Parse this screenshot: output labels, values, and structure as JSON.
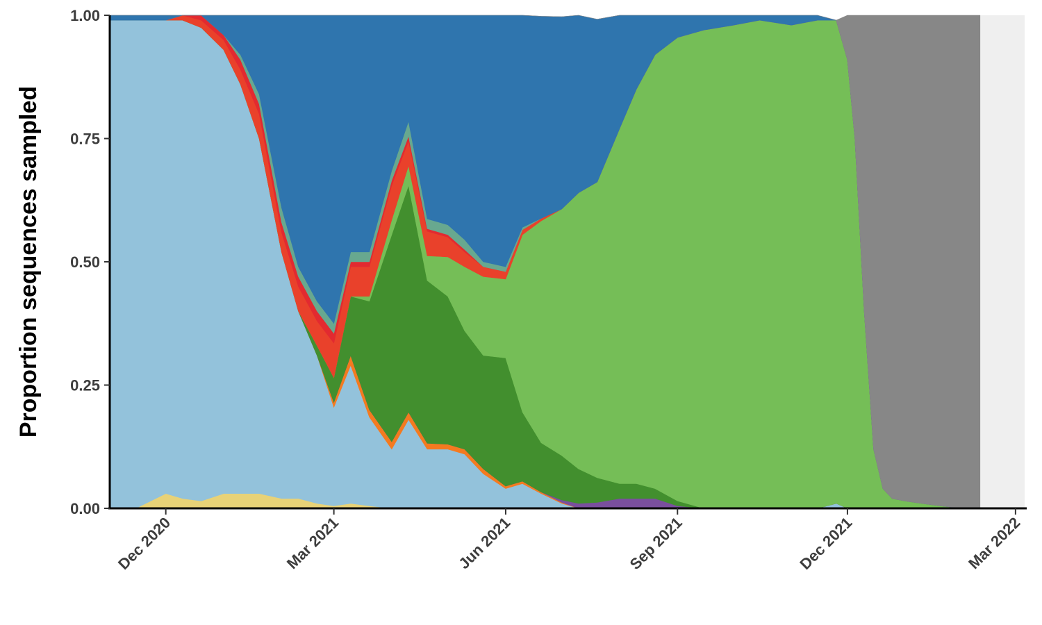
{
  "chart_data": {
    "type": "area",
    "title": "",
    "xlabel": "",
    "ylabel": "Proportion sequences sampled",
    "x_range": [
      "2020-11-01",
      "2022-03-07"
    ],
    "ylim": [
      0,
      1
    ],
    "x_ticks": [
      {
        "date": "2020-12-01",
        "label": "Dec 2020"
      },
      {
        "date": "2021-03-01",
        "label": "Mar 2021"
      },
      {
        "date": "2021-06-01",
        "label": "Jun 2021"
      },
      {
        "date": "2021-09-01",
        "label": "Sep 2021"
      },
      {
        "date": "2021-12-01",
        "label": "Dec 2021"
      },
      {
        "date": "2022-03-01",
        "label": "Mar 2022"
      }
    ],
    "y_ticks": [
      "0.00",
      "0.25",
      "0.50",
      "0.75",
      "1.00"
    ],
    "y_tick_values": [
      0,
      0.25,
      0.5,
      0.75,
      1.0
    ],
    "data_end": "2022-02-10",
    "no_data_color": "#efefef",
    "grid": false,
    "legend": "none",
    "dates": [
      "2020-11-01",
      "2020-11-15",
      "2020-12-01",
      "2020-12-10",
      "2020-12-20",
      "2021-01-01",
      "2021-01-10",
      "2021-01-20",
      "2021-02-01",
      "2021-02-10",
      "2021-02-20",
      "2021-03-01",
      "2021-03-10",
      "2021-03-20",
      "2021-04-01",
      "2021-04-10",
      "2021-04-20",
      "2021-05-01",
      "2021-05-10",
      "2021-05-20",
      "2021-06-01",
      "2021-06-10",
      "2021-06-20",
      "2021-07-01",
      "2021-07-10",
      "2021-07-20",
      "2021-08-01",
      "2021-08-10",
      "2021-08-20",
      "2021-09-01",
      "2021-09-15",
      "2021-10-01",
      "2021-10-15",
      "2021-11-01",
      "2021-11-15",
      "2021-11-25",
      "2021-12-01",
      "2021-12-05",
      "2021-12-10",
      "2021-12-15",
      "2021-12-20",
      "2021-12-25",
      "2022-01-01",
      "2022-01-10",
      "2022-01-20",
      "2022-02-01",
      "2022-02-10"
    ],
    "series": [
      {
        "color": "#e8d277",
        "values": [
          0,
          0,
          0.03,
          0.02,
          0.015,
          0.03,
          0.03,
          0.03,
          0.02,
          0.02,
          0.01,
          0.005,
          0.01,
          0.005,
          0,
          0,
          0,
          0,
          0,
          0,
          0,
          0,
          0,
          0,
          0,
          0,
          0,
          0,
          0,
          0,
          0,
          0,
          0,
          0,
          0,
          0,
          0,
          0,
          0,
          0,
          0,
          0,
          0,
          0,
          0,
          0,
          0
        ]
      },
      {
        "color": "#93c2db",
        "values": [
          0.99,
          0.99,
          0.96,
          0.97,
          0.96,
          0.9,
          0.83,
          0.72,
          0.5,
          0.38,
          0.3,
          0.2,
          0.28,
          0.18,
          0.12,
          0.18,
          0.12,
          0.12,
          0.11,
          0.07,
          0.04,
          0.05,
          0.03,
          0.01,
          0,
          0,
          0,
          0,
          0,
          0,
          0,
          0,
          0,
          0,
          0,
          0.01,
          0,
          0,
          0,
          0,
          0,
          0,
          0,
          0,
          0,
          0,
          0
        ]
      },
      {
        "color": "#f47a20",
        "values": [
          0,
          0,
          0,
          0,
          0,
          0,
          0,
          0,
          0,
          0,
          0,
          0.01,
          0.02,
          0.015,
          0.015,
          0.015,
          0.012,
          0.01,
          0.01,
          0.01,
          0.005,
          0.005,
          0.003,
          0.002,
          0,
          0,
          0,
          0,
          0,
          0,
          0,
          0,
          0,
          0,
          0,
          0,
          0,
          0,
          0,
          0,
          0,
          0,
          0,
          0,
          0,
          0,
          0
        ]
      },
      {
        "color": "#7a4f9e",
        "values": [
          0,
          0,
          0,
          0,
          0,
          0,
          0,
          0,
          0,
          0,
          0,
          0,
          0,
          0,
          0,
          0,
          0,
          0,
          0,
          0,
          0,
          0,
          0,
          0.005,
          0.01,
          0.012,
          0.02,
          0.02,
          0.02,
          0.005,
          0,
          0,
          0,
          0,
          0,
          0,
          0,
          0,
          0,
          0,
          0,
          0,
          0,
          0,
          0,
          0,
          0
        ]
      },
      {
        "color": "#428f2e",
        "values": [
          0,
          0,
          0,
          0,
          0,
          0,
          0,
          0,
          0,
          0,
          0.02,
          0.05,
          0.12,
          0.22,
          0.42,
          0.46,
          0.33,
          0.3,
          0.24,
          0.23,
          0.26,
          0.14,
          0.1,
          0.09,
          0.07,
          0.05,
          0.03,
          0.03,
          0.02,
          0.01,
          0,
          0,
          0,
          0,
          0,
          0,
          0,
          0,
          0,
          0,
          0,
          0,
          0,
          0,
          0,
          0,
          0
        ]
      },
      {
        "color": "#75be57",
        "values": [
          0,
          0,
          0,
          0,
          0,
          0,
          0,
          0,
          0,
          0,
          0,
          0,
          0,
          0.01,
          0.03,
          0.04,
          0.05,
          0.08,
          0.13,
          0.16,
          0.16,
          0.36,
          0.45,
          0.5,
          0.56,
          0.6,
          0.72,
          0.8,
          0.88,
          0.94,
          0.97,
          0.98,
          0.99,
          0.98,
          0.99,
          0.98,
          0.91,
          0.75,
          0.4,
          0.12,
          0.04,
          0.02,
          0.015,
          0.01,
          0.005,
          0,
          0
        ]
      },
      {
        "color": "#e9412b",
        "values": [
          0,
          0,
          0,
          0.01,
          0.015,
          0.02,
          0.03,
          0.05,
          0.04,
          0.05,
          0.05,
          0.07,
          0.06,
          0.06,
          0.07,
          0.05,
          0.05,
          0.04,
          0.03,
          0.02,
          0.015,
          0.01,
          0.005,
          0,
          0,
          0,
          0,
          0,
          0,
          0,
          0,
          0,
          0,
          0,
          0,
          0,
          0,
          0,
          0,
          0,
          0,
          0,
          0,
          0,
          0,
          0,
          0
        ]
      },
      {
        "color": "#e22a30",
        "values": [
          0,
          0,
          0,
          0.005,
          0.01,
          0.01,
          0.02,
          0.02,
          0.02,
          0.02,
          0.02,
          0.02,
          0.01,
          0.01,
          0.01,
          0.01,
          0.005,
          0.005,
          0.005,
          0,
          0,
          0,
          0,
          0,
          0,
          0,
          0,
          0,
          0,
          0,
          0,
          0,
          0,
          0,
          0,
          0,
          0,
          0,
          0,
          0,
          0,
          0,
          0,
          0,
          0,
          0,
          0
        ]
      },
      {
        "color": "#68a88f",
        "values": [
          0,
          0,
          0,
          0,
          0,
          0,
          0.01,
          0.02,
          0.03,
          0.02,
          0.02,
          0.02,
          0.02,
          0.02,
          0.02,
          0.03,
          0.02,
          0.02,
          0.02,
          0.01,
          0.01,
          0.005,
          0,
          0,
          0,
          0,
          0,
          0,
          0,
          0,
          0,
          0,
          0,
          0,
          0,
          0,
          0,
          0,
          0,
          0,
          0,
          0,
          0,
          0,
          0,
          0,
          0
        ]
      },
      {
        "color": "#2f75ae",
        "values": [
          0.01,
          0.01,
          0.01,
          0,
          0.015,
          0.04,
          0.11,
          0.16,
          0.39,
          0.51,
          0.58,
          0.63,
          0.48,
          0.5,
          0.32,
          0.24,
          0.43,
          0.43,
          0.47,
          0.51,
          0.51,
          0.43,
          0.41,
          0.39,
          0.36,
          0.33,
          0.23,
          0.15,
          0.08,
          0.045,
          0.03,
          0.02,
          0.01,
          0.02,
          0.01,
          0,
          0,
          0,
          0,
          0,
          0,
          0,
          0,
          0,
          0,
          0,
          0
        ]
      },
      {
        "color": "#878787",
        "values": [
          0,
          0,
          0,
          0,
          0,
          0,
          0,
          0,
          0,
          0,
          0,
          0,
          0,
          0,
          0,
          0,
          0,
          0,
          0,
          0,
          0,
          0,
          0,
          0,
          0,
          0,
          0,
          0,
          0,
          0,
          0,
          0,
          0,
          0,
          0,
          0,
          0.09,
          0.25,
          0.6,
          0.88,
          0.96,
          0.98,
          0.985,
          0.99,
          0.995,
          1,
          1
        ]
      }
    ]
  }
}
